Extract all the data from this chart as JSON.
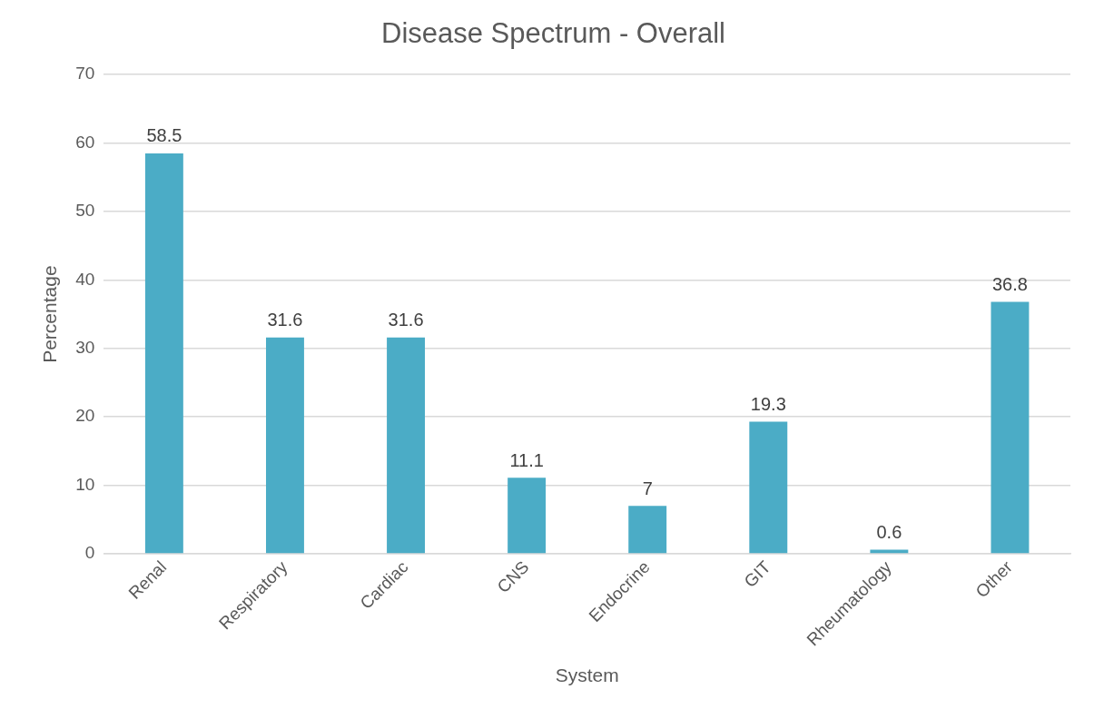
{
  "chart_data": {
    "type": "bar",
    "title": "Disease Spectrum - Overall",
    "xlabel": "System",
    "ylabel": "Percentage",
    "categories": [
      "Renal",
      "Respiratory",
      "Cardiac",
      "CNS",
      "Endocrine",
      "GIT",
      "Rheumatology",
      "Other"
    ],
    "values": [
      58.5,
      31.6,
      31.6,
      11.1,
      7,
      19.3,
      0.6,
      36.8
    ],
    "color": "#4bacc6",
    "ylim": [
      0,
      70
    ],
    "yticks": [
      0,
      10,
      20,
      30,
      40,
      50,
      60,
      70
    ],
    "grid": "y",
    "data_labels": true
  }
}
